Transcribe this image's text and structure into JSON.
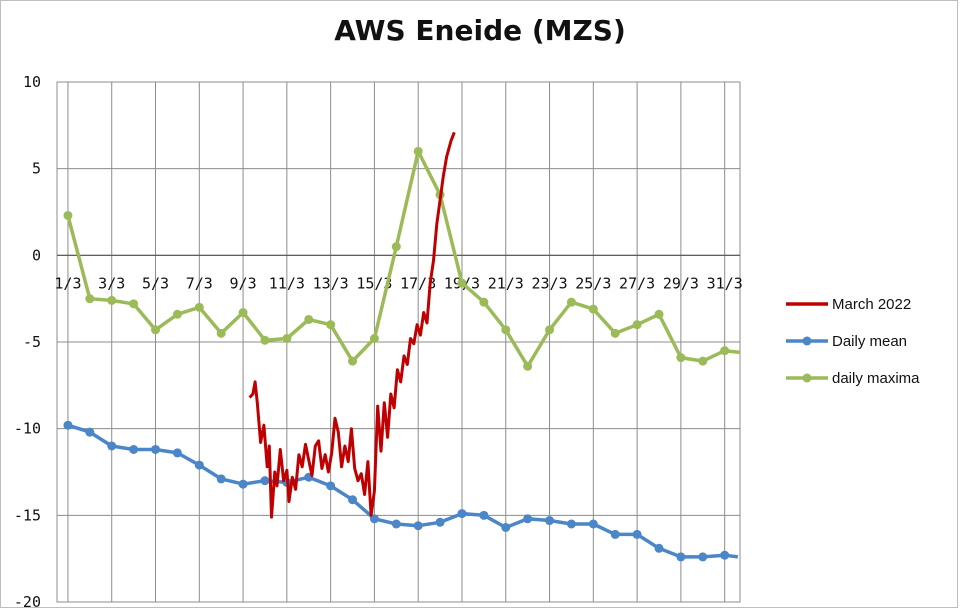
{
  "chart_data": {
    "type": "line",
    "title": "AWS Eneide (MZS)",
    "xlabel": "",
    "ylabel": "",
    "xlim": [
      0.5,
      31.7
    ],
    "ylim": [
      -20,
      10
    ],
    "y_ticks": [
      10,
      5,
      0,
      -5,
      -10,
      -15,
      -20
    ],
    "x_ticks": [
      {
        "label": "1/3",
        "day": 1
      },
      {
        "label": "3/3",
        "day": 3
      },
      {
        "label": "5/3",
        "day": 5
      },
      {
        "label": "7/3",
        "day": 7
      },
      {
        "label": "9/3",
        "day": 9
      },
      {
        "label": "11/3",
        "day": 11
      },
      {
        "label": "13/3",
        "day": 13
      },
      {
        "label": "15/3",
        "day": 15
      },
      {
        "label": "17/3",
        "day": 17
      },
      {
        "label": "19/3",
        "day": 19
      },
      {
        "label": "21/3",
        "day": 21
      },
      {
        "label": "23/3",
        "day": 23
      },
      {
        "label": "25/3",
        "day": 25
      },
      {
        "label": "27/3",
        "day": 27
      },
      {
        "label": "29/3",
        "day": 29
      },
      {
        "label": "31/3",
        "day": 31
      }
    ],
    "grid": true,
    "legend_position": "right",
    "series": [
      {
        "name": "March 2022",
        "color": "#c00000",
        "marker": "none",
        "x": [
          9.3,
          9.45,
          9.55,
          9.65,
          9.8,
          9.95,
          10.1,
          10.2,
          10.3,
          10.45,
          10.55,
          10.7,
          10.85,
          11.0,
          11.1,
          11.25,
          11.4,
          11.55,
          11.7,
          11.85,
          12.0,
          12.15,
          12.3,
          12.45,
          12.6,
          12.75,
          12.9,
          13.05,
          13.2,
          13.35,
          13.5,
          13.65,
          13.8,
          13.95,
          14.1,
          14.25,
          14.4,
          14.55,
          14.7,
          14.85,
          15.0,
          15.15,
          15.3,
          15.45,
          15.6,
          15.75,
          15.9,
          16.05,
          16.2,
          16.35,
          16.5,
          16.65,
          16.8,
          16.95,
          17.1,
          17.25,
          17.4,
          17.55,
          17.7,
          17.85,
          18.0,
          18.15,
          18.3,
          18.5,
          18.65
        ],
        "y": [
          -8.2,
          -8.0,
          -7.3,
          -8.5,
          -10.8,
          -9.8,
          -12.2,
          -11.0,
          -15.1,
          -12.5,
          -13.3,
          -11.2,
          -13.0,
          -12.4,
          -14.2,
          -12.8,
          -13.5,
          -11.5,
          -12.2,
          -10.9,
          -11.8,
          -12.7,
          -11.0,
          -10.7,
          -12.3,
          -11.5,
          -12.5,
          -11.4,
          -9.4,
          -10.2,
          -12.2,
          -11.0,
          -11.9,
          -10.0,
          -12.3,
          -13.0,
          -12.6,
          -13.8,
          -11.9,
          -15.0,
          -13.6,
          -8.7,
          -11.3,
          -8.5,
          -10.5,
          -8.0,
          -8.8,
          -6.6,
          -7.3,
          -5.8,
          -6.3,
          -4.8,
          -5.1,
          -4.0,
          -4.6,
          -3.3,
          -3.9,
          -1.6,
          -0.3,
          1.8,
          3.2,
          4.6,
          5.7,
          6.6,
          7.1
        ]
      },
      {
        "name": "Daily mean",
        "color": "#4a86c8",
        "marker": "circle",
        "x": [
          1,
          2,
          3,
          4,
          5,
          6,
          7,
          8,
          9,
          10,
          11,
          12,
          13,
          14,
          15,
          16,
          17,
          18,
          19,
          20,
          21,
          22,
          23,
          24,
          25,
          26,
          27,
          28,
          29,
          30,
          31,
          31.6
        ],
        "y": [
          -9.8,
          -10.2,
          -11.0,
          -11.2,
          -11.2,
          -11.4,
          -12.1,
          -12.9,
          -13.2,
          -13.0,
          -13.1,
          -12.8,
          -13.3,
          -14.1,
          -15.2,
          -15.5,
          -15.6,
          -15.4,
          -14.9,
          -15.0,
          -15.7,
          -15.2,
          -15.3,
          -15.5,
          -15.5,
          -16.1,
          -16.1,
          -16.9,
          -17.4,
          -17.4,
          -17.3,
          -17.4
        ]
      },
      {
        "name": "daily maxima",
        "color": "#9bbb59",
        "marker": "circle",
        "x": [
          1,
          2,
          3,
          4,
          5,
          6,
          7,
          8,
          9,
          10,
          11,
          12,
          13,
          14,
          15,
          16,
          17,
          18,
          19,
          20,
          21,
          22,
          23,
          24,
          25,
          26,
          27,
          28,
          29,
          30,
          31,
          31.7
        ],
        "y": [
          2.3,
          -2.5,
          -2.6,
          -2.8,
          -4.3,
          -3.4,
          -3.0,
          -4.5,
          -3.3,
          -4.9,
          -4.8,
          -3.7,
          -4.0,
          -6.1,
          -4.8,
          0.5,
          6.0,
          3.5,
          -1.6,
          -2.7,
          -4.3,
          -6.4,
          -4.3,
          -2.7,
          -3.1,
          -4.5,
          -4.0,
          -3.4,
          -5.9,
          -6.1,
          -5.5,
          -5.6
        ]
      }
    ]
  }
}
